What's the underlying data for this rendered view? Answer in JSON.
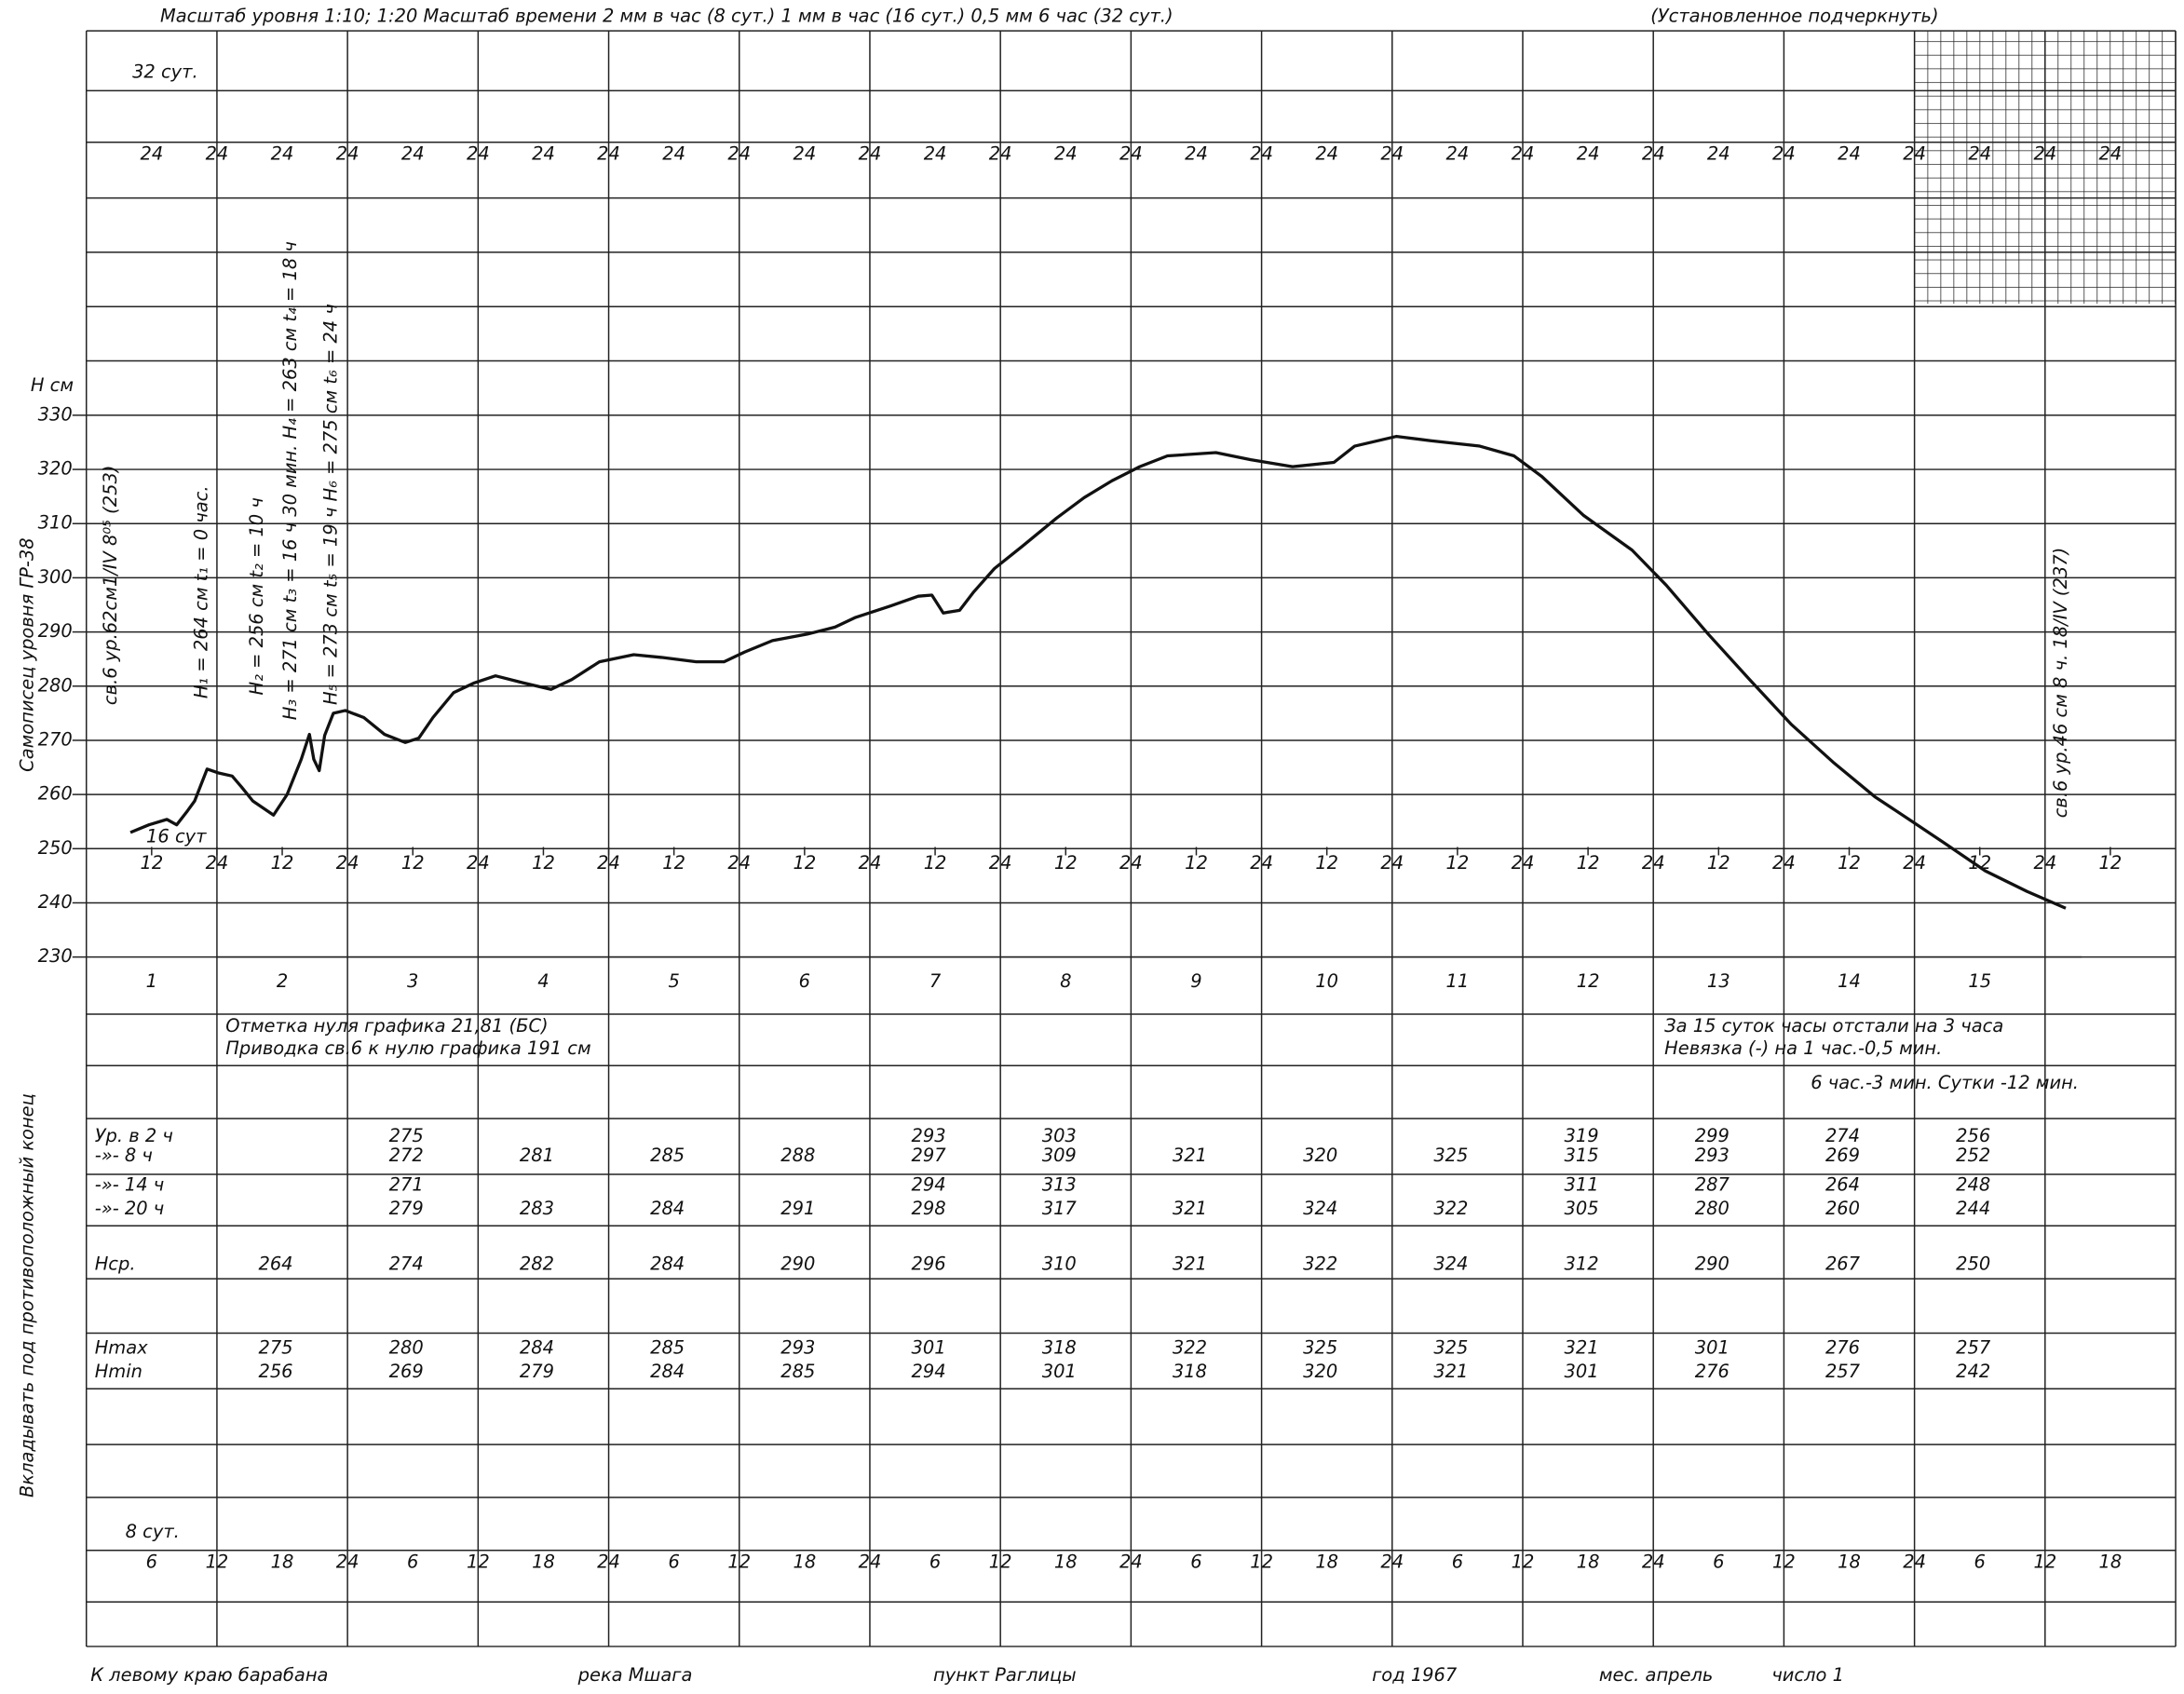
{
  "header": {
    "scales": "Масштаб уровня 1:10; 1:20  Масштаб времени 2 мм в час (8 сут.)   1 мм в час (16 сут.)  0,5 мм 6 час (32 сут.)",
    "note": "(Установленное подчеркнуть)"
  },
  "side_labels": [
    "Самописец уровня ГР-38",
    "Вкладывать под противоположный конец"
  ],
  "scale_32": {
    "title": "32 сут.",
    "labels": [
      "24",
      "24",
      "24",
      "24",
      "24",
      "24",
      "24",
      "24",
      "24",
      "24",
      "24",
      "24",
      "24",
      "24",
      "24",
      "24",
      "24",
      "24",
      "24",
      "24",
      "24",
      "24",
      "24",
      "24",
      "24",
      "24",
      "24",
      "24",
      "24",
      "24",
      "24"
    ]
  },
  "scale_8": {
    "title": "8 сут.",
    "labels": [
      "6",
      "12",
      "18",
      "24",
      "6",
      "12",
      "18",
      "24",
      "6",
      "12",
      "18",
      "24",
      "6",
      "12",
      "18",
      "24",
      "6",
      "12",
      "18",
      "24",
      "6",
      "12",
      "18",
      "24",
      "6",
      "12",
      "18",
      "24",
      "6",
      "12",
      "18"
    ]
  },
  "chart_data": {
    "type": "line",
    "y_label": "H см",
    "scale_label": "16 сут",
    "color": "#111111",
    "grid": true,
    "xlim": [
      0,
      384
    ],
    "ylim": [
      230,
      330
    ],
    "yticks": [
      230,
      240,
      250,
      260,
      270,
      280,
      290,
      300,
      310,
      320,
      330
    ],
    "xticks": [
      12,
      24,
      {
        "value": 36,
        "label": "12"
      },
      {
        "value": 48,
        "label": "24"
      },
      {
        "value": 60,
        "label": "12"
      },
      {
        "value": 72,
        "label": "24"
      },
      {
        "value": 84,
        "label": "12"
      },
      {
        "value": 96,
        "label": "24"
      },
      {
        "value": 108,
        "label": "12"
      },
      {
        "value": 120,
        "label": "24"
      },
      {
        "value": 132,
        "label": "12"
      },
      {
        "value": 144,
        "label": "24"
      },
      {
        "value": 156,
        "label": "12"
      },
      {
        "value": 168,
        "label": "24"
      },
      {
        "value": 180,
        "label": "12"
      },
      {
        "value": 192,
        "label": "24"
      },
      {
        "value": 204,
        "label": "12"
      },
      {
        "value": 216,
        "label": "24"
      },
      {
        "value": 228,
        "label": "12"
      },
      {
        "value": 240,
        "label": "24"
      },
      {
        "value": 252,
        "label": "12"
      },
      {
        "value": 264,
        "label": "24"
      },
      {
        "value": 276,
        "label": "12"
      },
      {
        "value": 288,
        "label": "24"
      },
      {
        "value": 300,
        "label": "12"
      },
      {
        "value": 312,
        "label": "24"
      },
      {
        "value": 324,
        "label": "12"
      },
      {
        "value": 336,
        "label": "24"
      },
      {
        "value": 348,
        "label": "12"
      },
      {
        "value": 360,
        "label": "24"
      },
      {
        "value": 372,
        "label": "12"
      }
    ],
    "days": [
      "1",
      "2",
      "3",
      "4",
      "5",
      "6",
      "7",
      "8",
      "9",
      "10",
      "11",
      "12",
      "13",
      "14",
      "15"
    ],
    "x": [
      8.1,
      11.5,
      14.8,
      16.6,
      18.6,
      19.9,
      22.2,
      24.2,
      26.8,
      28.5,
      30.6,
      34.4,
      36.9,
      39.5,
      41,
      41.8,
      42.8,
      43.8,
      45.4,
      47.6,
      51,
      54.8,
      58.6,
      61.1,
      63.7,
      67.5,
      71.3,
      75.2,
      80.3,
      85.4,
      89.2,
      94.3,
      100.6,
      105.7,
      112.1,
      117.2,
      121,
      126.1,
      132.5,
      137.6,
      141.4,
      147.8,
      152.9,
      155.4,
      157.5,
      160.5,
      163.1,
      166.9,
      172,
      178.3,
      183.4,
      188.5,
      193.6,
      198.7,
      207.6,
      214,
      221.7,
      229.3,
      233.1,
      240.8,
      247.1,
      256.1,
      262.4,
      267.5,
      275.2,
      284.1,
      290.4,
      298.1,
      305.7,
      313.4,
      321,
      328.7,
      335,
      341.4,
      349,
      356.7,
      363.8
    ],
    "values": [
      253,
      254.4,
      255.4,
      254.4,
      257,
      258.8,
      264.7,
      264,
      263.4,
      261.4,
      258.8,
      256.2,
      260,
      266.5,
      271.1,
      266.5,
      264.4,
      270.9,
      275,
      275.5,
      274.2,
      271.1,
      269.6,
      270.4,
      274.2,
      278.8,
      280.6,
      281.9,
      280.6,
      279.4,
      281.2,
      284.5,
      285.8,
      285.3,
      284.5,
      284.5,
      286.3,
      288.4,
      289.6,
      290.9,
      292.7,
      294.8,
      296.6,
      296.8,
      293.5,
      294,
      297.4,
      301.7,
      305.8,
      311,
      314.8,
      317.9,
      320.5,
      322.5,
      323.1,
      321.8,
      320.5,
      321.3,
      324.3,
      326.1,
      325.3,
      324.3,
      322.5,
      318.7,
      311.5,
      305.1,
      298.6,
      289.6,
      281.2,
      272.9,
      266,
      259.6,
      255.4,
      251.1,
      245.9,
      242.1,
      239
    ],
    "annotations": [
      "св.6 ур.62см1/IV 8⁰⁵ (253)",
      "H₁ = 264 см   t₁ = 0 час.",
      "H₂ = 256 см   t₂ = 10 ч",
      "H₃ = 271 см  t₃ = 16 ч 30 мин.  H₄ = 263 см  t₄ = 18 ч",
      "H₅ = 273 см  t₅ = 19 ч   H₆ = 275 см  t₆ = 24 ч",
      "св.6 ур.46 см   8 ч. 18/IV (237)"
    ]
  },
  "notes": {
    "left": [
      "Отметка  нуля  графика  21,81 (БС)",
      "Приводка  св.6  к нулю графика 191 см"
    ],
    "right": [
      "За 15 суток  часы  отстали  на  3 часа",
      "Невязка (-) на  1 час.-0,5 мин.",
      "6 час.-3 мин.  Сутки -12 мин."
    ]
  },
  "table": {
    "row_labels": [
      "Ур. в 2 ч",
      "-»-  8 ч",
      "-»- 14 ч",
      "-»- 20 ч",
      "Hср.",
      "Hmax",
      "Hmin"
    ],
    "rows": [
      [
        null,
        275,
        null,
        null,
        null,
        293,
        303,
        null,
        null,
        null,
        319,
        299,
        274,
        256
      ],
      [
        null,
        272,
        281,
        285,
        288,
        297,
        309,
        321,
        320,
        325,
        315,
        293,
        269,
        252
      ],
      [
        null,
        271,
        null,
        null,
        null,
        294,
        313,
        null,
        null,
        null,
        311,
        287,
        264,
        248
      ],
      [
        null,
        279,
        283,
        284,
        291,
        298,
        317,
        321,
        324,
        322,
        305,
        280,
        260,
        244
      ],
      [
        264,
        274,
        282,
        284,
        290,
        296,
        310,
        321,
        322,
        324,
        312,
        290,
        267,
        250
      ],
      [
        275,
        280,
        284,
        285,
        293,
        301,
        318,
        322,
        325,
        325,
        321,
        301,
        276,
        257
      ],
      [
        256,
        269,
        279,
        284,
        285,
        294,
        301,
        318,
        320,
        321,
        301,
        276,
        257,
        242
      ]
    ]
  },
  "footer": [
    "К левому  краю  барабана",
    "река Мшага",
    "пункт  Раглицы",
    "год 1967",
    "мес. апрель",
    "число 1"
  ]
}
